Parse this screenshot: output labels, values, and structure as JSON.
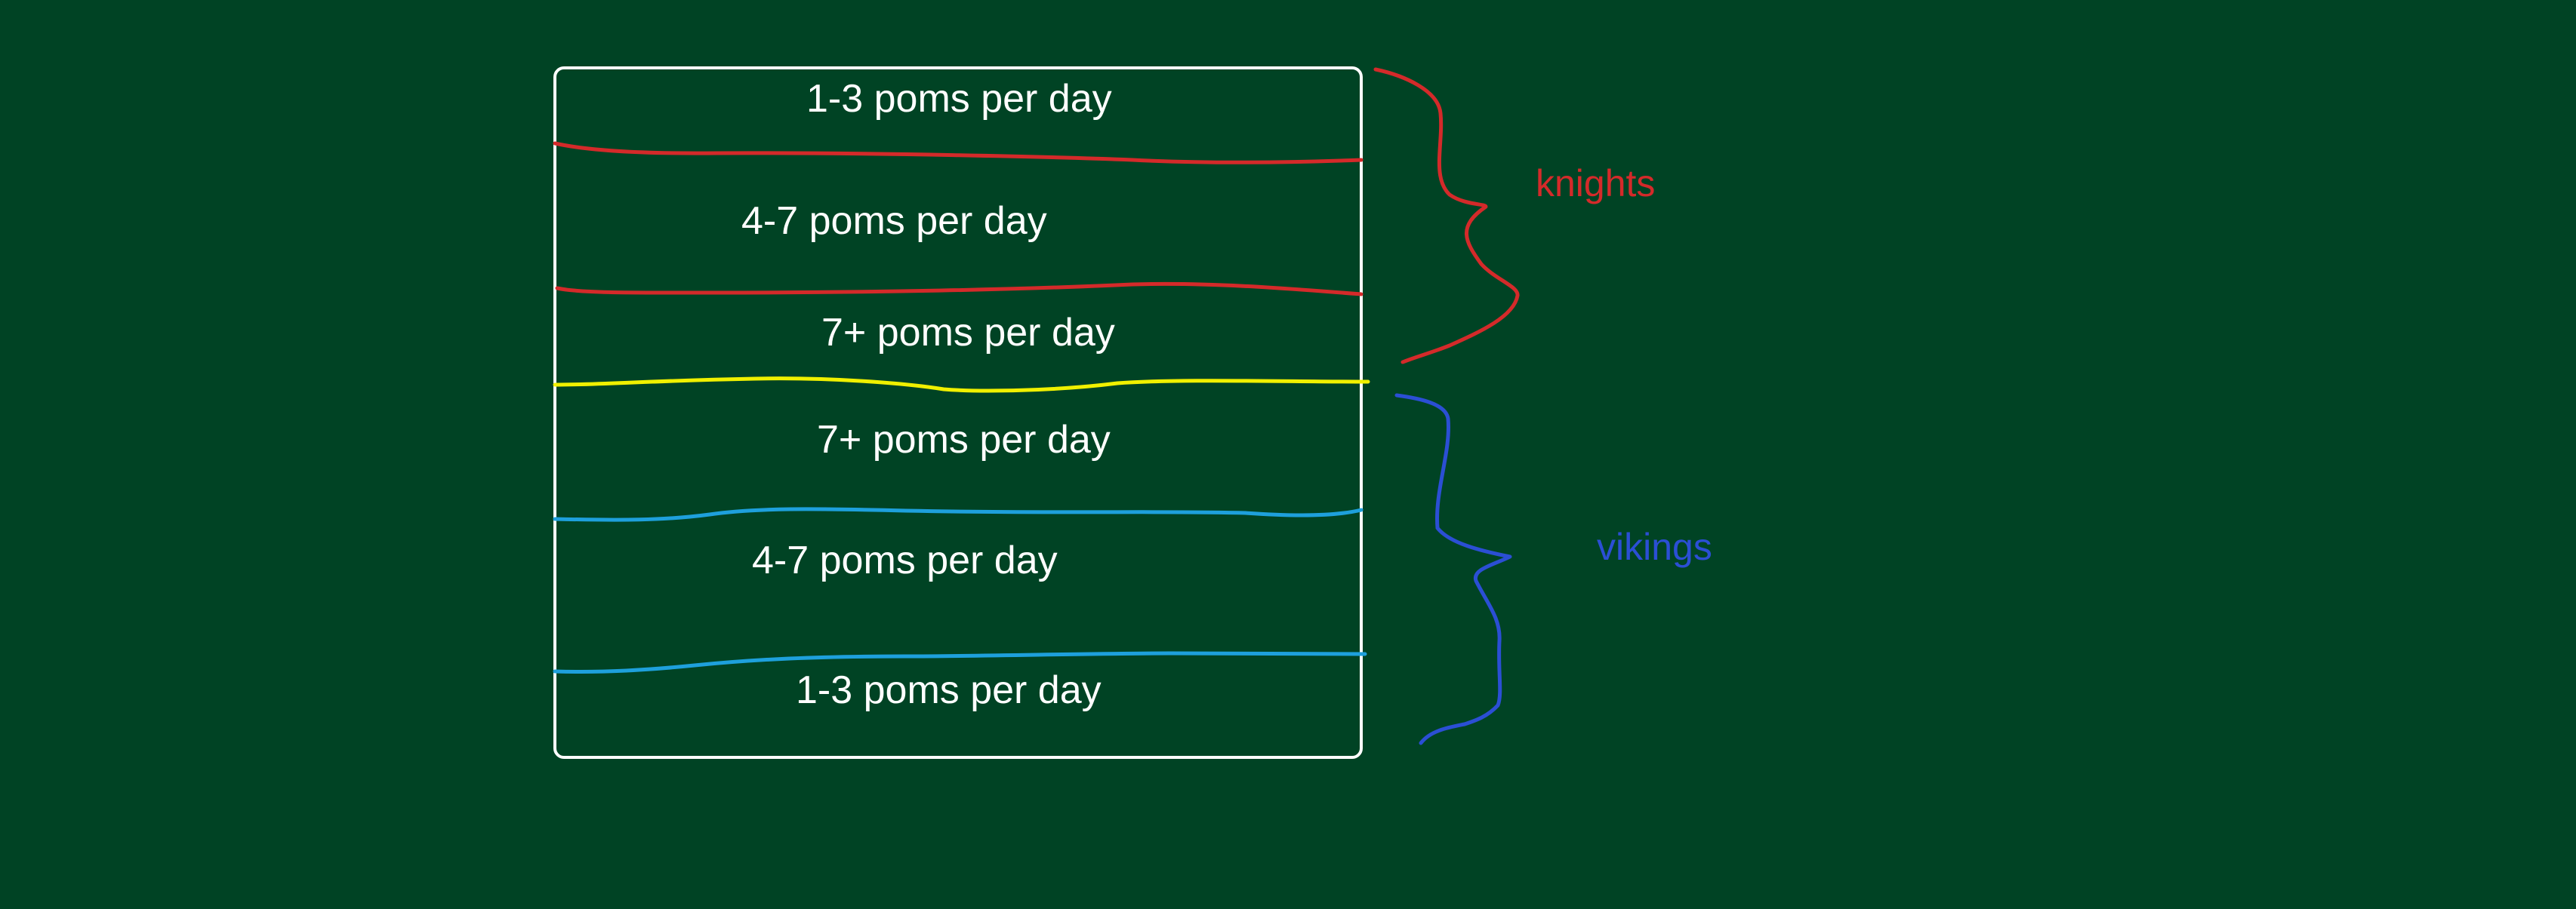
{
  "colors": {
    "background": "#004324",
    "frame": "#ffffff",
    "knights": "#d42a2a",
    "vikings": "#2b4fd4",
    "knights_separator": "#d42a2a",
    "vikings_separator": "#1ea0dc",
    "divider": "#f0f000",
    "text": "#ffffff"
  },
  "bands": [
    {
      "label": "1-3 poms per day"
    },
    {
      "label": "4-7 poms per day"
    },
    {
      "label": "7+ poms per day"
    },
    {
      "label": "7+ poms per day"
    },
    {
      "label": "4-7 poms per day"
    },
    {
      "label": "1-3 poms per day"
    }
  ],
  "groups": {
    "knights": {
      "label": "knights"
    },
    "vikings": {
      "label": "vikings"
    }
  }
}
